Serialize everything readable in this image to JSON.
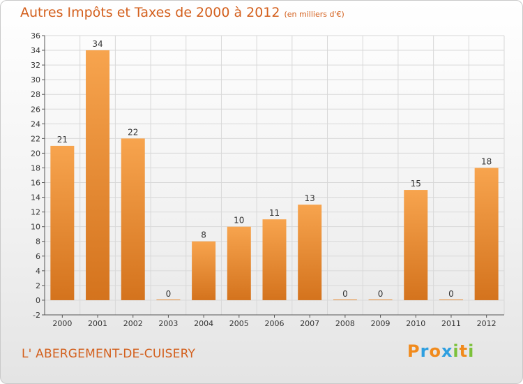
{
  "chart_data": {
    "type": "bar",
    "title": "Autres Impôts et Taxes de 2000 à 2012",
    "subtitle": "(en milliers d'€)",
    "categories": [
      "2000",
      "2001",
      "2002",
      "2003",
      "2004",
      "2005",
      "2006",
      "2007",
      "2008",
      "2009",
      "2010",
      "2011",
      "2012"
    ],
    "values": [
      21,
      34,
      22,
      0,
      8,
      10,
      11,
      13,
      0,
      0,
      15,
      0,
      18
    ],
    "ylim": [
      -2,
      36
    ],
    "yticks": [
      -2,
      0,
      2,
      4,
      6,
      8,
      10,
      12,
      14,
      16,
      18,
      20,
      22,
      24,
      26,
      28,
      30,
      32,
      34,
      36
    ],
    "grid": true,
    "xlabel": "",
    "ylabel": "",
    "colors": {
      "bar_light": "#f7a44e",
      "bar_dark": "#d4731d",
      "title": "#d35f1c"
    }
  },
  "commune": "L' ABERGEMENT-DE-CUISERY",
  "logo": {
    "letters": [
      "P",
      "r",
      "o",
      "x",
      "i",
      "t",
      "i"
    ],
    "colors": [
      "#f18a1c",
      "#2e9fe0",
      "#f18a1c",
      "#2e9fe0",
      "#7cc13a",
      "#f18a1c",
      "#7cc13a"
    ]
  }
}
